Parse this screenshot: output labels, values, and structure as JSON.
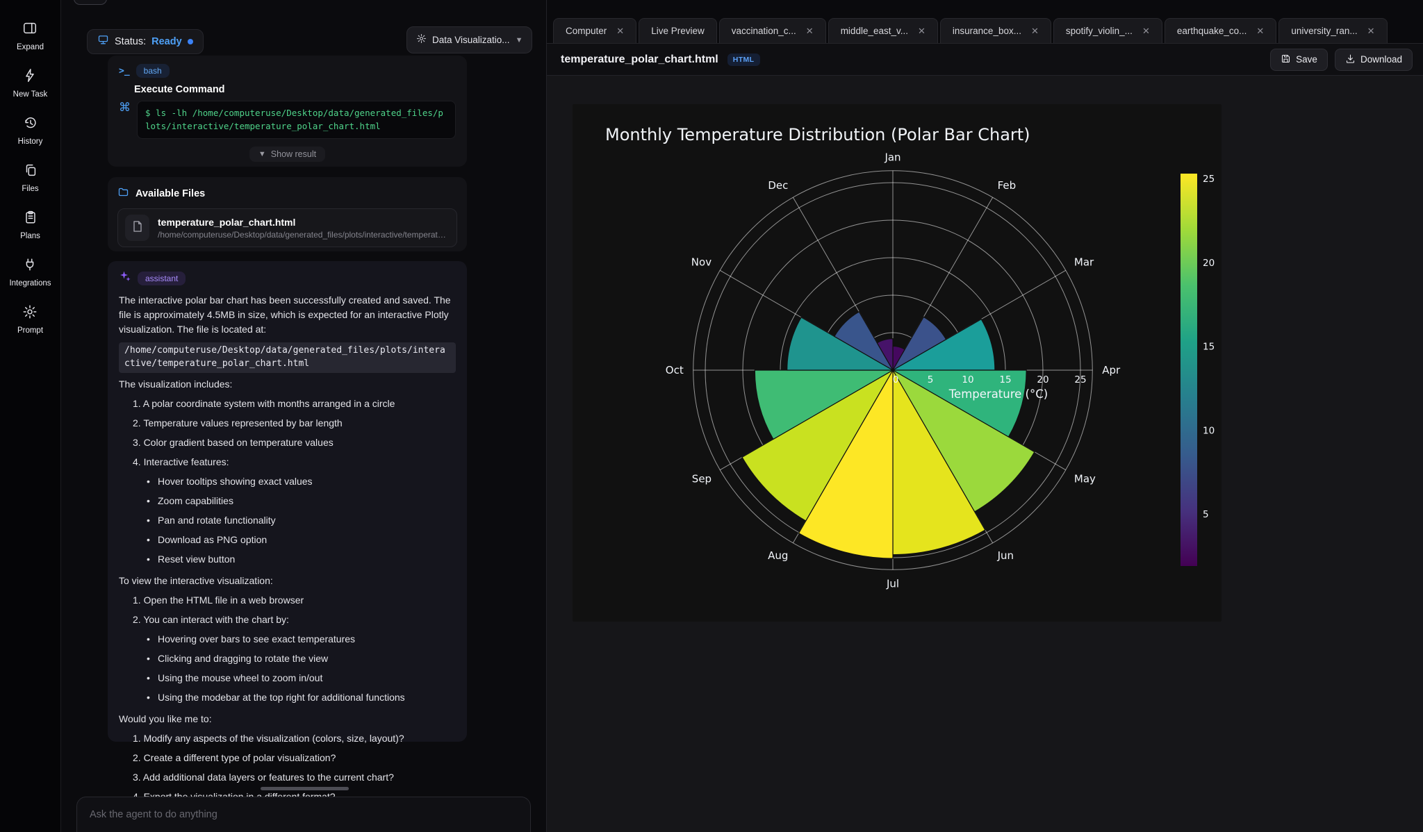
{
  "sidebar": {
    "items": [
      {
        "label": "Expand"
      },
      {
        "label": "New Task"
      },
      {
        "label": "History"
      },
      {
        "label": "Files"
      },
      {
        "label": "Plans"
      },
      {
        "label": "Integrations"
      },
      {
        "label": "Prompt"
      }
    ]
  },
  "status_bar": {
    "status_label": "Status:",
    "status_value": "Ready",
    "task_selector": "Data Visualizatio..."
  },
  "bash_card": {
    "tool": "bash",
    "title": "Execute Command",
    "command": "$ ls -lh /home/computeruse/Desktop/data/generated_files/plots/interactive/temperature_polar_chart.html",
    "show_result": "Show result"
  },
  "files_card": {
    "title": "Available Files",
    "file": {
      "name": "temperature_polar_chart.html",
      "path": "/home/computeruse/Desktop/data/generated_files/plots/interactive/temperature_p..."
    }
  },
  "assistant": {
    "role": "assistant",
    "p1": "The interactive polar bar chart has been successfully created and saved. The file is approximately 4.5MB in size, which is expected for an interactive Plotly visualization. The file is located at:",
    "code_path": "/home/computeruse/Desktop/data/generated_files/plots/interactive/temperature_polar_chart.html",
    "p2": "The visualization includes:",
    "list1": [
      "1. A polar coordinate system with months arranged in a circle",
      "2. Temperature values represented by bar length",
      "3. Color gradient based on temperature values",
      "4. Interactive features:"
    ],
    "list1_sub": [
      "Hover tooltips showing exact values",
      "Zoom capabilities",
      "Pan and rotate functionality",
      "Download as PNG option",
      "Reset view button"
    ],
    "p3": "To view the interactive visualization:",
    "list2": [
      "1. Open the HTML file in a web browser",
      "2. You can interact with the chart by:"
    ],
    "list2_sub": [
      "Hovering over bars to see exact temperatures",
      "Clicking and dragging to rotate the view",
      "Using the mouse wheel to zoom in/out",
      "Using the modebar at the top right for additional functions"
    ],
    "p4": "Would you like me to:",
    "list3": [
      "1. Modify any aspects of the visualization (colors, size, layout)?",
      "2. Create a different type of polar visualization?",
      "3. Add additional data layers or features to the current chart?",
      "4. Export the visualization in a different format?"
    ],
    "p5": "Please let me know how I can help you further!"
  },
  "composer": {
    "placeholder": "Ask the agent to do anything"
  },
  "tabs": [
    {
      "label": "Computer",
      "closable": true
    },
    {
      "label": "Live Preview",
      "closable": false
    },
    {
      "label": "vaccination_c...",
      "closable": true
    },
    {
      "label": "middle_east_v...",
      "closable": true
    },
    {
      "label": "insurance_box...",
      "closable": true
    },
    {
      "label": "spotify_violin_...",
      "closable": true
    },
    {
      "label": "earthquake_co...",
      "closable": true
    },
    {
      "label": "university_ran...",
      "closable": true
    }
  ],
  "file_header": {
    "filename": "temperature_polar_chart.html",
    "badge": "HTML",
    "save_label": "Save",
    "download_label": "Download"
  },
  "chart_data": {
    "type": "polar_bar",
    "title": "Monthly Temperature Distribution (Polar Bar Chart)",
    "categories": [
      "Jan",
      "Feb",
      "Mar",
      "Apr",
      "May",
      "Jun",
      "Jul",
      "Aug",
      "Sep",
      "Oct",
      "Nov",
      "Dec"
    ],
    "values": [
      3.2,
      8.2,
      13.6,
      17.8,
      21.8,
      24.6,
      25.1,
      23.2,
      18.4,
      14.1,
      9.0,
      4.2
    ],
    "bar_colors": [
      "#45085f",
      "#3b528b",
      "#1b9e9a",
      "#2fb47c",
      "#9bd93c",
      "#e5e41d",
      "#fde725",
      "#c9e120",
      "#3fbc74",
      "#1f948e",
      "#39558c",
      "#461369"
    ],
    "bar_angle_note": "each bar spans the 30deg sector clockwise of its month spoke",
    "radial_axis_label": "Temperature (°C)",
    "radial_ticks": [
      0,
      5,
      10,
      15,
      20,
      25
    ],
    "radial_tick_max": 25,
    "radial_outer": 26.6,
    "grid_color": "rgba(255,255,255,0.55)",
    "paper_color": "#111111",
    "colorbar": {
      "min": 1.9,
      "max": 25.3,
      "ticks": [
        5,
        10,
        15,
        20,
        25
      ],
      "colors": [
        "#440154",
        "#46327e",
        "#365c8d",
        "#277f8e",
        "#1fa187",
        "#4ac16d",
        "#a0da39",
        "#fde725"
      ]
    }
  }
}
